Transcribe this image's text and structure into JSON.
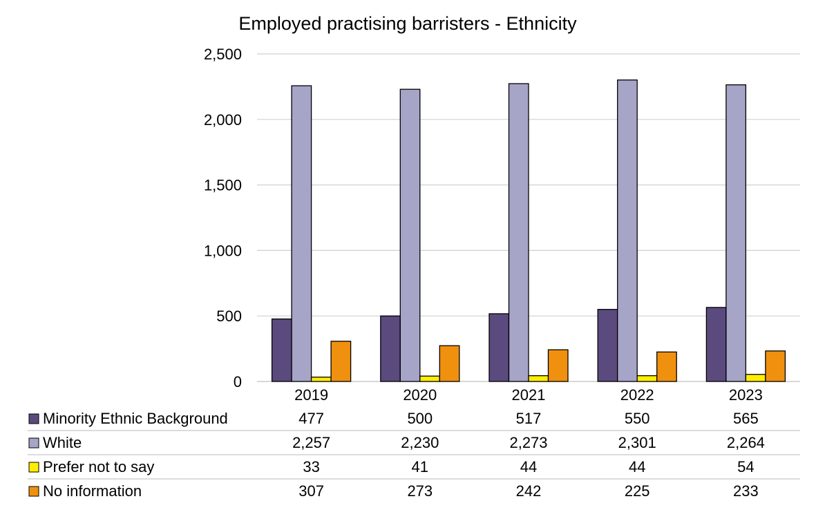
{
  "chart_data": {
    "type": "bar",
    "title": "Employed practising barristers - Ethnicity",
    "categories": [
      "2019",
      "2020",
      "2021",
      "2022",
      "2023"
    ],
    "y_ticks": [
      "0",
      "500",
      "1,000",
      "1,500",
      "2,000",
      "2,500"
    ],
    "ylim": [
      0,
      2500
    ],
    "grid": true,
    "legend": "data-table-below",
    "series": [
      {
        "name": "Minority Ethnic Background",
        "color": "#5b4a7e",
        "values": [
          477,
          500,
          517,
          550,
          565
        ],
        "labels": [
          "477",
          "500",
          "517",
          "550",
          "565"
        ]
      },
      {
        "name": "White",
        "color": "#a6a4c7",
        "values": [
          2257,
          2230,
          2273,
          2301,
          2264
        ],
        "labels": [
          "2,257",
          "2,230",
          "2,273",
          "2,301",
          "2,264"
        ]
      },
      {
        "name": "Prefer not to say",
        "color": "#ffee00",
        "values": [
          33,
          41,
          44,
          44,
          54
        ],
        "labels": [
          "33",
          "41",
          "44",
          "44",
          "54"
        ]
      },
      {
        "name": "No information",
        "color": "#f0900f",
        "values": [
          307,
          273,
          242,
          225,
          233
        ],
        "labels": [
          "307",
          "273",
          "242",
          "225",
          "233"
        ]
      }
    ]
  }
}
